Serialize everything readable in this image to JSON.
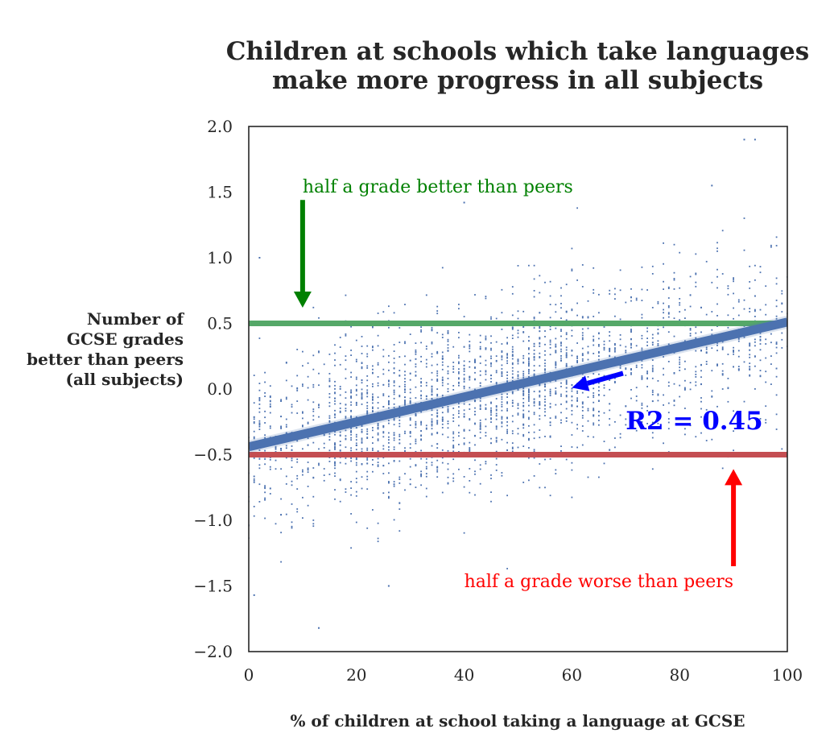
{
  "chart_data": {
    "type": "scatter",
    "title_line1": "Children at schools which take languages",
    "title_line2": "make more progress in all subjects",
    "xlabel": "% of children at school taking a language at GCSE",
    "ylabel_lines": [
      "Number of",
      "GCSE grades",
      "better than peers",
      "(all subjects)"
    ],
    "xlim": [
      0,
      100
    ],
    "ylim": [
      -2.0,
      2.0
    ],
    "xticks": [
      0,
      20,
      40,
      60,
      80,
      100
    ],
    "xtick_labels": [
      "0",
      "20",
      "40",
      "60",
      "80",
      "100"
    ],
    "yticks": [
      2.0,
      1.5,
      1.0,
      0.5,
      0.0,
      -0.5,
      -1.0,
      -1.5,
      -2.0
    ],
    "ytick_labels": [
      "2.0",
      "1.5",
      "1.0",
      "0.5",
      "0.0",
      "−0.5",
      "−1.0",
      "−1.5",
      "−2.0"
    ],
    "grid": false,
    "regression_line": {
      "x": [
        0,
        100
      ],
      "y": [
        -0.44,
        0.51
      ],
      "color": "#4c72b0"
    },
    "reference_lines": [
      {
        "y": 0.5,
        "color": "#55a868"
      },
      {
        "y": -0.5,
        "color": "#c44e52"
      }
    ],
    "annotations": [
      {
        "text": "half a grade better than peers",
        "color": "#008000",
        "x": 10,
        "y": 1.5,
        "arrow_from": [
          10,
          1.44
        ],
        "arrow_to": [
          10,
          0.62
        ]
      },
      {
        "text": "half a grade worse than peers",
        "color": "#ff0000",
        "x": 90,
        "y": -1.5,
        "arrow_from": [
          90,
          -1.35
        ],
        "arrow_to": [
          90,
          -0.61
        ]
      },
      {
        "text": "R2 = 0.45",
        "color": "#0000ff",
        "x": 70,
        "y": -0.25,
        "arrow_from": [
          69.5,
          0.12
        ],
        "arrow_to": [
          60,
          0.01
        ]
      }
    ],
    "scatter": {
      "n_points": 2600,
      "point_color": "#4c72b0",
      "slope": 0.0095,
      "intercept": -0.44,
      "residual_sd": 0.33,
      "notable_points": [
        [
          2,
          1.0
        ],
        [
          13,
          -1.82
        ],
        [
          92,
          1.9
        ],
        [
          94,
          1.9
        ],
        [
          40,
          1.42
        ],
        [
          86,
          1.55
        ],
        [
          1,
          -1.57
        ],
        [
          26,
          -1.5
        ]
      ]
    }
  }
}
